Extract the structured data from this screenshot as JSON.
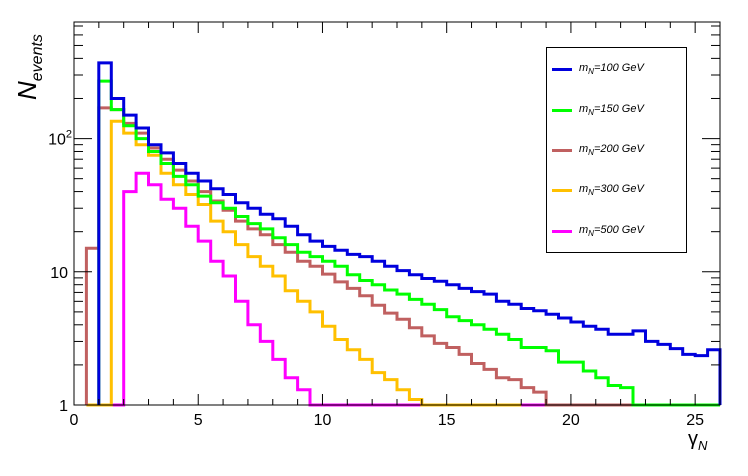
{
  "chart_data": {
    "type": "line",
    "step": true,
    "xlabel": "γ",
    "xlabel_sub": "N",
    "ylabel": "N",
    "ylabel_sub": "events",
    "log_y": true,
    "xlim": [
      0,
      26
    ],
    "ylim": [
      1,
      750
    ],
    "bin_width": 0.5,
    "x_ticks": [
      0,
      5,
      10,
      15,
      20,
      25
    ],
    "y_ticks": [
      1,
      10,
      100
    ],
    "y_tick_labels": [
      "1",
      "10",
      "10²"
    ],
    "legend_position": "top-right",
    "series": [
      {
        "name": "m_N=100 GeV",
        "label_main": "m",
        "label_sub": "N",
        "label_rest": "=100 GeV",
        "color": "#0000dd",
        "start": 1.0,
        "values": [
          370,
          200,
          150,
          120,
          90,
          78,
          65,
          55,
          48,
          42,
          38,
          33,
          30,
          27,
          25,
          22,
          19,
          17,
          15.5,
          14.5,
          13.5,
          13,
          12,
          11,
          10.2,
          9.5,
          8.9,
          8.5,
          8.0,
          7.5,
          7.1,
          6.8,
          6.0,
          5.7,
          5.3,
          5.1,
          4.8,
          4.5,
          4.2,
          3.9,
          3.7,
          3.4,
          3.4,
          3.6,
          3.0,
          2.85,
          2.65,
          2.4,
          2.35,
          2.6,
          2.25,
          2.3,
          1.7,
          1.6,
          1.45,
          1.7,
          1.25,
          1.45,
          1.4,
          1.2,
          1.12,
          1.0,
          1.0
        ]
      },
      {
        "name": "m_N=150 GeV",
        "label_main": "m",
        "label_sub": "N",
        "label_rest": "=150 GeV",
        "color": "#00ff00",
        "start": 1.0,
        "values": [
          270,
          165,
          125,
          100,
          80,
          65,
          52,
          45,
          37,
          33,
          30,
          26,
          23,
          21,
          18,
          16,
          14,
          13,
          12,
          11,
          9.5,
          8.6,
          8.0,
          7.3,
          6.8,
          6.2,
          5.7,
          5.2,
          4.6,
          4.3,
          4.0,
          3.7,
          3.4,
          3.1,
          2.7,
          2.7,
          2.55,
          2.1,
          2.1,
          1.8,
          1.6,
          1.4,
          1.35,
          1.0,
          1.0,
          1.0,
          1.0,
          1.0,
          1.0,
          1.0,
          1.0,
          1.0,
          1.0,
          1.0,
          1.0,
          1.0,
          1.0,
          1.0,
          1.0,
          1.0,
          1.0,
          1.0,
          1.0
        ]
      },
      {
        "name": "m_N=200 GeV",
        "label_main": "m",
        "label_sub": "N",
        "label_rest": "=200 GeV",
        "color": "#c06060",
        "start": 0.5,
        "values": [
          15,
          170,
          165,
          130,
          110,
          85,
          70,
          58,
          48,
          40,
          34,
          29,
          24,
          21,
          19,
          16,
          14,
          12,
          11,
          9.6,
          8.4,
          7.5,
          6.6,
          5.6,
          4.9,
          4.4,
          3.8,
          3.3,
          2.9,
          2.7,
          2.4,
          2.05,
          1.85,
          1.6,
          1.55,
          1.35,
          1.25,
          1.0,
          1.0,
          1.0,
          1.0,
          1.0,
          1.0,
          1.0,
          1.0,
          1.0,
          1.0,
          1.0,
          1.0,
          1.0,
          1.0,
          1.0,
          1.0,
          1.0
        ]
      },
      {
        "name": "m_N=300 GeV",
        "label_main": "m",
        "label_sub": "N",
        "label_rest": "=300 GeV",
        "color": "#ffc000",
        "start": 0.5,
        "values": [
          1.0,
          1.0,
          135,
          110,
          90,
          75,
          55,
          45,
          38,
          32,
          24,
          20,
          16,
          13,
          11,
          9.3,
          7.2,
          6.0,
          5.0,
          3.9,
          3.1,
          2.6,
          2.2,
          1.75,
          1.55,
          1.3,
          1.1,
          1.0,
          1.0,
          1.0,
          1.0,
          1.0,
          1.0,
          1.0,
          1.0
        ]
      },
      {
        "name": "m_N=500 GeV",
        "label_main": "m",
        "label_sub": "N",
        "label_rest": "=500 GeV",
        "color": "#ff00ff",
        "start": 1.5,
        "values": [
          1.0,
          40,
          55,
          45,
          35,
          30,
          22,
          17,
          12,
          9.3,
          6.0,
          4.0,
          3.0,
          2.2,
          1.6,
          1.3,
          1.0,
          1.0,
          1.0,
          1.0,
          1.0,
          1.0,
          1.0,
          1.0,
          1.0,
          1.0,
          1.0,
          1.0,
          1.0,
          1.0,
          1.0,
          1.0,
          1.0,
          1.0,
          1.0,
          1.0,
          1.0,
          1.0,
          1.0,
          1.0,
          1.0,
          1.0,
          1.0,
          1.0,
          1.0,
          1.0,
          1.0,
          1.0,
          1.0
        ]
      }
    ]
  }
}
